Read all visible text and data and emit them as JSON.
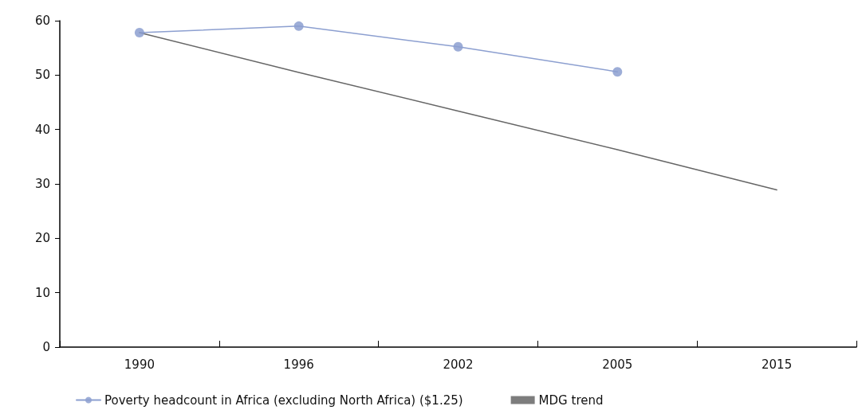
{
  "chart_data": {
    "type": "line",
    "categories": [
      "1990",
      "1996",
      "2002",
      "2005",
      "2015"
    ],
    "series": [
      {
        "name": "Poverty headcount in Africa (excluding North Africa) ($1.25)",
        "color": "#8c9fd0",
        "values": [
          57.8,
          59.0,
          55.2,
          50.6,
          null
        ],
        "marker": "circle"
      },
      {
        "name": "MDG trend",
        "color": "#666666",
        "values": [
          57.8,
          50.5,
          43.4,
          36.3,
          28.9
        ],
        "marker": "none"
      }
    ],
    "ylim": [
      0,
      60
    ],
    "yticks": [
      0,
      10,
      20,
      30,
      40,
      50,
      60
    ],
    "grid": false,
    "legend": "bottom left"
  }
}
